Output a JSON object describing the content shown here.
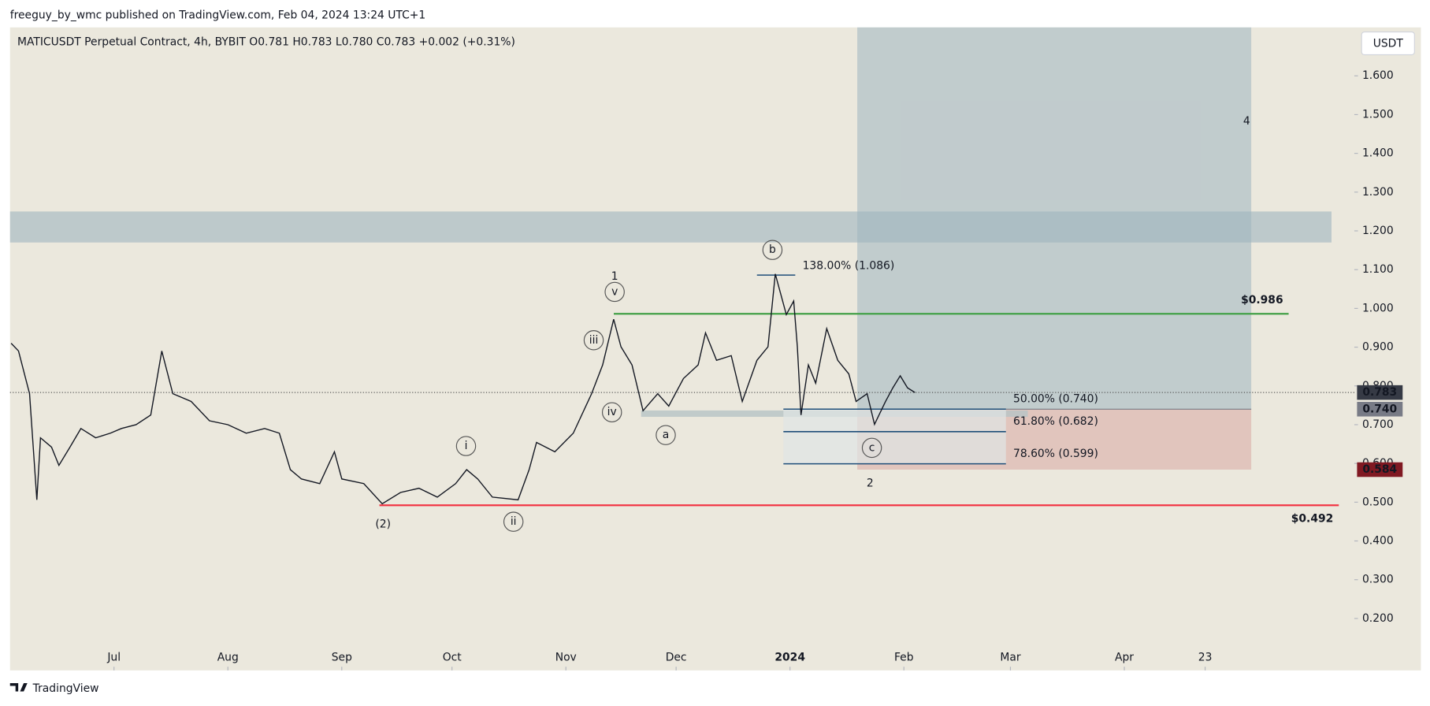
{
  "chart_data": {
    "type": "line",
    "header": "freeguy_by_wmc published on TradingView.com, Feb 04, 2024 13:24 UTC+1",
    "legend": "MATICUSDT Perpetual Contract, 4h, BYBIT  O0.781  H0.783  L0.780  C0.783  +0.002 (+0.31%)",
    "currency": "USDT",
    "footer": "TradingView",
    "xlim": [
      -28.3,
      337.6
    ],
    "ylim": [
      0.066,
      1.725
    ],
    "xticks": [
      {
        "value": 0,
        "label": "Jul"
      },
      {
        "value": 31,
        "label": "Aug"
      },
      {
        "value": 62,
        "label": "Sep"
      },
      {
        "value": 92,
        "label": "Oct"
      },
      {
        "value": 123,
        "label": "Nov"
      },
      {
        "value": 153,
        "label": "Dec"
      },
      {
        "value": 184,
        "label": "2024"
      },
      {
        "value": 215,
        "label": "Feb"
      },
      {
        "value": 244,
        "label": "Mar"
      },
      {
        "value": 275,
        "label": "Apr"
      },
      {
        "value": 297,
        "label": "23"
      }
    ],
    "yticks": [
      {
        "value": 1.6,
        "label": "1.600"
      },
      {
        "value": 1.5,
        "label": "1.500"
      },
      {
        "value": 1.4,
        "label": "1.400"
      },
      {
        "value": 1.3,
        "label": "1.300"
      },
      {
        "value": 1.2,
        "label": "1.200"
      },
      {
        "value": 1.1,
        "label": "1.100"
      },
      {
        "value": 1.0,
        "label": "1.000"
      },
      {
        "value": 0.9,
        "label": "0.900"
      },
      {
        "value": 0.8,
        "label": "0.800"
      },
      {
        "value": 0.7,
        "label": "0.700"
      },
      {
        "value": 0.6,
        "label": "0.600"
      },
      {
        "value": 0.5,
        "label": "0.500"
      },
      {
        "value": 0.4,
        "label": "0.400"
      },
      {
        "value": 0.3,
        "label": "0.300"
      },
      {
        "value": 0.2,
        "label": "0.200"
      }
    ],
    "series": [
      {
        "color": "#131722",
        "x": [
          -28,
          -26,
          -23,
          -21,
          -20,
          -17,
          -15,
          -12,
          -9,
          -5,
          -1,
          2,
          6,
          10,
          13,
          16,
          21,
          26,
          31,
          36,
          41,
          45,
          48,
          51,
          56,
          60,
          62,
          68,
          73,
          78,
          83,
          88,
          93,
          96,
          99,
          103,
          110,
          113,
          115,
          120,
          125,
          130,
          133,
          136,
          138,
          141,
          144,
          148,
          151,
          155,
          159,
          161,
          164,
          168,
          171,
          175,
          178,
          180,
          183,
          185,
          186,
          187,
          189,
          191,
          192,
          194,
          197,
          200,
          202,
          205,
          207,
          210,
          212,
          214,
          216,
          218
        ],
        "values": [
          0.91,
          0.89,
          0.78,
          0.506,
          0.666,
          0.642,
          0.595,
          0.642,
          0.69,
          0.666,
          0.678,
          0.69,
          0.7,
          0.725,
          0.89,
          0.78,
          0.76,
          0.71,
          0.7,
          0.678,
          0.69,
          0.678,
          0.584,
          0.56,
          0.548,
          0.63,
          0.56,
          0.548,
          0.496,
          0.525,
          0.536,
          0.513,
          0.548,
          0.584,
          0.56,
          0.513,
          0.506,
          0.584,
          0.654,
          0.63,
          0.678,
          0.78,
          0.854,
          0.972,
          0.901,
          0.854,
          0.736,
          0.78,
          0.748,
          0.819,
          0.854,
          0.937,
          0.866,
          0.878,
          0.76,
          0.866,
          0.901,
          1.089,
          0.984,
          1.019,
          0.901,
          0.725,
          0.854,
          0.807,
          0.854,
          0.948,
          0.866,
          0.831,
          0.76,
          0.78,
          0.701,
          0.76,
          0.795,
          0.826,
          0.795,
          0.783
        ]
      }
    ],
    "last_price": 0.783,
    "zone": [
      1.17,
      1.25
    ],
    "position": {
      "entry": 0.74,
      "stop": 0.584
    },
    "levels": [
      {
        "value": 0.986,
        "label": "$0.986",
        "color": "#43a047"
      },
      {
        "value": 0.492,
        "label": "$0.492",
        "color": "#f23645"
      }
    ],
    "fib": [
      {
        "value": 1.086,
        "label": "138.00% (1.086)"
      },
      {
        "value": 0.74,
        "label": "50.00% (0.740)"
      },
      {
        "value": 0.682,
        "label": "61.80% (0.682)"
      },
      {
        "value": 0.599,
        "label": "78.60% (0.599)"
      }
    ],
    "price_tags": [
      {
        "value": 0.783,
        "label": "0.783",
        "color": "#363a45"
      },
      {
        "value": 0.74,
        "label": "0.740",
        "color": "#787b86"
      },
      {
        "value": 0.584,
        "label": "0.584",
        "color": "#801922"
      }
    ],
    "wave_circles": [
      "b",
      "v",
      "iii",
      "iv",
      "a",
      "i",
      "ii",
      "c"
    ],
    "wave_numbers": [
      "1",
      "2",
      "4"
    ],
    "wave_major": "(2)"
  }
}
